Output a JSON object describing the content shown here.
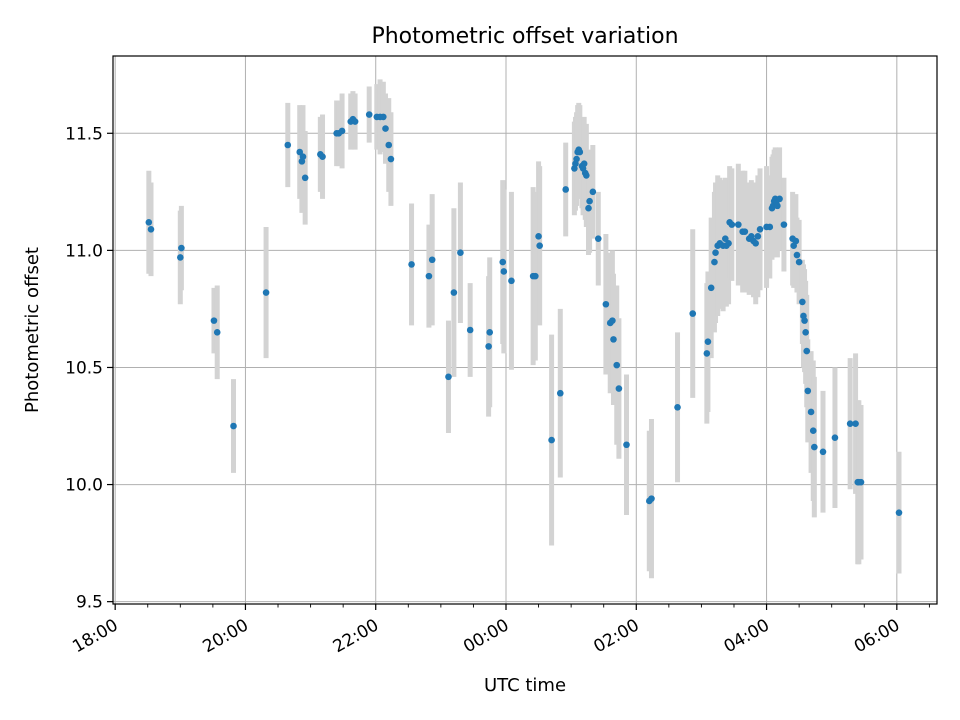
{
  "chart_data": {
    "type": "scatter",
    "title": "Photometric offset variation",
    "xlabel": "UTC time",
    "ylabel": "Photometric offset",
    "x_tick_labels": [
      "18:00",
      "20:00",
      "22:00",
      "00:00",
      "02:00",
      "04:00",
      "06:00"
    ],
    "x_ticks": [
      "18:00",
      "20:00",
      "22:00",
      "00:00",
      "02:00",
      "04:00",
      "06:00"
    ],
    "xlim": [
      "17:58",
      "06:37"
    ],
    "y_ticks": [
      9.5,
      10.0,
      10.5,
      11.0,
      11.5
    ],
    "y_tick_labels": [
      "9.5",
      "10.0",
      "10.5",
      "11.0",
      "11.5"
    ],
    "ylim": [
      9.49,
      11.83
    ],
    "grid": true,
    "colors": {
      "marker": "#1f77b4",
      "errorbar": "#d3d3d3",
      "grid": "#b0b0b0"
    },
    "series": [
      {
        "points": [
          {
            "t": "18:31",
            "y": 11.12,
            "err": 0.22
          },
          {
            "t": "18:33",
            "y": 11.09,
            "err": 0.2
          },
          {
            "t": "19:00",
            "y": 10.97,
            "err": 0.2
          },
          {
            "t": "19:01",
            "y": 11.01,
            "err": 0.18
          },
          {
            "t": "19:31",
            "y": 10.7,
            "err": 0.14
          },
          {
            "t": "19:34",
            "y": 10.65,
            "err": 0.2
          },
          {
            "t": "19:49",
            "y": 10.25,
            "err": 0.2
          },
          {
            "t": "20:19",
            "y": 10.82,
            "err": 0.28
          },
          {
            "t": "20:39",
            "y": 11.45,
            "err": 0.18
          },
          {
            "t": "20:50",
            "y": 11.42,
            "err": 0.2
          },
          {
            "t": "20:52",
            "y": 11.38,
            "err": 0.22
          },
          {
            "t": "20:53",
            "y": 11.4,
            "err": 0.22
          },
          {
            "t": "20:55",
            "y": 11.31,
            "err": 0.2
          },
          {
            "t": "21:09",
            "y": 11.41,
            "err": 0.16
          },
          {
            "t": "21:11",
            "y": 11.4,
            "err": 0.18
          },
          {
            "t": "21:24",
            "y": 11.5,
            "err": 0.14
          },
          {
            "t": "21:26",
            "y": 11.5,
            "err": 0.14
          },
          {
            "t": "21:29",
            "y": 11.51,
            "err": 0.16
          },
          {
            "t": "21:37",
            "y": 11.55,
            "err": 0.12
          },
          {
            "t": "21:39",
            "y": 11.56,
            "err": 0.12
          },
          {
            "t": "21:41",
            "y": 11.55,
            "err": 0.12
          },
          {
            "t": "21:54",
            "y": 11.58,
            "err": 0.12
          },
          {
            "t": "22:01",
            "y": 11.57,
            "err": 0.14
          },
          {
            "t": "22:04",
            "y": 11.57,
            "err": 0.16
          },
          {
            "t": "22:07",
            "y": 11.57,
            "err": 0.15
          },
          {
            "t": "22:09",
            "y": 11.52,
            "err": 0.15
          },
          {
            "t": "22:12",
            "y": 11.45,
            "err": 0.2
          },
          {
            "t": "22:14",
            "y": 11.39,
            "err": 0.2
          },
          {
            "t": "22:33",
            "y": 10.94,
            "err": 0.26
          },
          {
            "t": "22:49",
            "y": 10.89,
            "err": 0.22
          },
          {
            "t": "22:52",
            "y": 10.96,
            "err": 0.28
          },
          {
            "t": "23:07",
            "y": 10.46,
            "err": 0.24
          },
          {
            "t": "23:12",
            "y": 10.82,
            "err": 0.36
          },
          {
            "t": "23:18",
            "y": 10.99,
            "err": 0.3
          },
          {
            "t": "23:27",
            "y": 10.66,
            "err": 0.2
          },
          {
            "t": "23:44",
            "y": 10.59,
            "err": 0.3
          },
          {
            "t": "23:45",
            "y": 10.65,
            "err": 0.32
          },
          {
            "t": "23:57",
            "y": 10.95,
            "err": 0.35
          },
          {
            "t": "23:58",
            "y": 10.91,
            "err": 0.35
          },
          {
            "t": "00:05",
            "y": 10.87,
            "err": 0.38
          },
          {
            "t": "00:25",
            "y": 10.89,
            "err": 0.38
          },
          {
            "t": "00:27",
            "y": 10.89,
            "err": 0.36
          },
          {
            "t": "00:30",
            "y": 11.06,
            "err": 0.32
          },
          {
            "t": "00:31",
            "y": 11.02,
            "err": 0.34
          },
          {
            "t": "00:42",
            "y": 10.19,
            "err": 0.45
          },
          {
            "t": "00:50",
            "y": 10.39,
            "err": 0.36
          },
          {
            "t": "00:55",
            "y": 11.26,
            "err": 0.2
          },
          {
            "t": "01:03",
            "y": 11.35,
            "err": 0.2
          },
          {
            "t": "01:04",
            "y": 11.37,
            "err": 0.2
          },
          {
            "t": "01:05",
            "y": 11.39,
            "err": 0.2
          },
          {
            "t": "01:06",
            "y": 11.42,
            "err": 0.2
          },
          {
            "t": "01:07",
            "y": 11.43,
            "err": 0.2
          },
          {
            "t": "01:08",
            "y": 11.42,
            "err": 0.2
          },
          {
            "t": "01:10",
            "y": 11.36,
            "err": 0.18
          },
          {
            "t": "01:11",
            "y": 11.35,
            "err": 0.2
          },
          {
            "t": "01:12",
            "y": 11.37,
            "err": 0.2
          },
          {
            "t": "01:13",
            "y": 11.33,
            "err": 0.2
          },
          {
            "t": "01:14",
            "y": 11.32,
            "err": 0.22
          },
          {
            "t": "01:16",
            "y": 11.18,
            "err": 0.2
          },
          {
            "t": "01:17",
            "y": 11.21,
            "err": 0.22
          },
          {
            "t": "01:20",
            "y": 11.25,
            "err": 0.2
          },
          {
            "t": "01:25",
            "y": 11.05,
            "err": 0.2
          },
          {
            "t": "01:32",
            "y": 10.77,
            "err": 0.3
          },
          {
            "t": "01:36",
            "y": 10.69,
            "err": 0.3
          },
          {
            "t": "01:38",
            "y": 10.7,
            "err": 0.3
          },
          {
            "t": "01:39",
            "y": 10.62,
            "err": 0.28
          },
          {
            "t": "01:42",
            "y": 10.51,
            "err": 0.34
          },
          {
            "t": "01:44",
            "y": 10.41,
            "err": 0.3
          },
          {
            "t": "01:51",
            "y": 10.17,
            "err": 0.3
          },
          {
            "t": "02:12",
            "y": 9.93,
            "err": 0.3
          },
          {
            "t": "02:14",
            "y": 9.94,
            "err": 0.34
          },
          {
            "t": "02:38",
            "y": 10.33,
            "err": 0.32
          },
          {
            "t": "02:52",
            "y": 10.73,
            "err": 0.36
          },
          {
            "t": "03:05",
            "y": 10.56,
            "err": 0.3
          },
          {
            "t": "03:06",
            "y": 10.61,
            "err": 0.3
          },
          {
            "t": "03:09",
            "y": 10.84,
            "err": 0.3
          },
          {
            "t": "03:12",
            "y": 10.95,
            "err": 0.3
          },
          {
            "t": "03:13",
            "y": 10.99,
            "err": 0.3
          },
          {
            "t": "03:15",
            "y": 11.02,
            "err": 0.3
          },
          {
            "t": "03:17",
            "y": 11.03,
            "err": 0.28
          },
          {
            "t": "03:20",
            "y": 11.02,
            "err": 0.28
          },
          {
            "t": "03:22",
            "y": 11.05,
            "err": 0.26
          },
          {
            "t": "03:23",
            "y": 11.02,
            "err": 0.26
          },
          {
            "t": "03:25",
            "y": 11.03,
            "err": 0.26
          },
          {
            "t": "03:26",
            "y": 11.12,
            "err": 0.24
          },
          {
            "t": "03:28",
            "y": 11.11,
            "err": 0.24
          },
          {
            "t": "03:34",
            "y": 11.11,
            "err": 0.26
          },
          {
            "t": "03:38",
            "y": 11.08,
            "err": 0.26
          },
          {
            "t": "03:40",
            "y": 11.08,
            "err": 0.26
          },
          {
            "t": "03:44",
            "y": 11.05,
            "err": 0.24
          },
          {
            "t": "03:46",
            "y": 11.06,
            "err": 0.24
          },
          {
            "t": "03:48",
            "y": 11.04,
            "err": 0.24
          },
          {
            "t": "03:50",
            "y": 11.03,
            "err": 0.26
          },
          {
            "t": "03:52",
            "y": 11.06,
            "err": 0.26
          },
          {
            "t": "03:54",
            "y": 11.09,
            "err": 0.26
          },
          {
            "t": "04:00",
            "y": 11.1,
            "err": 0.26
          },
          {
            "t": "04:03",
            "y": 11.1,
            "err": 0.22
          },
          {
            "t": "04:05",
            "y": 11.18,
            "err": 0.22
          },
          {
            "t": "04:06",
            "y": 11.19,
            "err": 0.22
          },
          {
            "t": "04:07",
            "y": 11.21,
            "err": 0.22
          },
          {
            "t": "04:08",
            "y": 11.22,
            "err": 0.22
          },
          {
            "t": "04:09",
            "y": 11.2,
            "err": 0.2
          },
          {
            "t": "04:10",
            "y": 11.19,
            "err": 0.22
          },
          {
            "t": "04:12",
            "y": 11.22,
            "err": 0.22
          },
          {
            "t": "04:16",
            "y": 11.11,
            "err": 0.2
          },
          {
            "t": "04:24",
            "y": 11.05,
            "err": 0.2
          },
          {
            "t": "04:25",
            "y": 11.02,
            "err": 0.18
          },
          {
            "t": "04:27",
            "y": 11.04,
            "err": 0.2
          },
          {
            "t": "04:28",
            "y": 10.98,
            "err": 0.16
          },
          {
            "t": "04:30",
            "y": 10.95,
            "err": 0.18
          },
          {
            "t": "04:33",
            "y": 10.78,
            "err": 0.18
          },
          {
            "t": "04:34",
            "y": 10.72,
            "err": 0.22
          },
          {
            "t": "04:35",
            "y": 10.7,
            "err": 0.22
          },
          {
            "t": "04:36",
            "y": 10.65,
            "err": 0.22
          },
          {
            "t": "04:37",
            "y": 10.57,
            "err": 0.24
          },
          {
            "t": "04:38",
            "y": 10.4,
            "err": 0.22
          },
          {
            "t": "04:41",
            "y": 10.31,
            "err": 0.26
          },
          {
            "t": "04:43",
            "y": 10.23,
            "err": 0.3
          },
          {
            "t": "04:44",
            "y": 10.16,
            "err": 0.3
          },
          {
            "t": "04:52",
            "y": 10.14,
            "err": 0.26
          },
          {
            "t": "05:03",
            "y": 10.2,
            "err": 0.3
          },
          {
            "t": "05:17",
            "y": 10.26,
            "err": 0.28
          },
          {
            "t": "05:22",
            "y": 10.26,
            "err": 0.3
          },
          {
            "t": "05:24",
            "y": 10.01,
            "err": 0.35
          },
          {
            "t": "05:25",
            "y": 10.01,
            "err": 0.35
          },
          {
            "t": "05:27",
            "y": 10.01,
            "err": 0.33
          },
          {
            "t": "06:02",
            "y": 9.88,
            "err": 0.26
          }
        ]
      }
    ]
  }
}
